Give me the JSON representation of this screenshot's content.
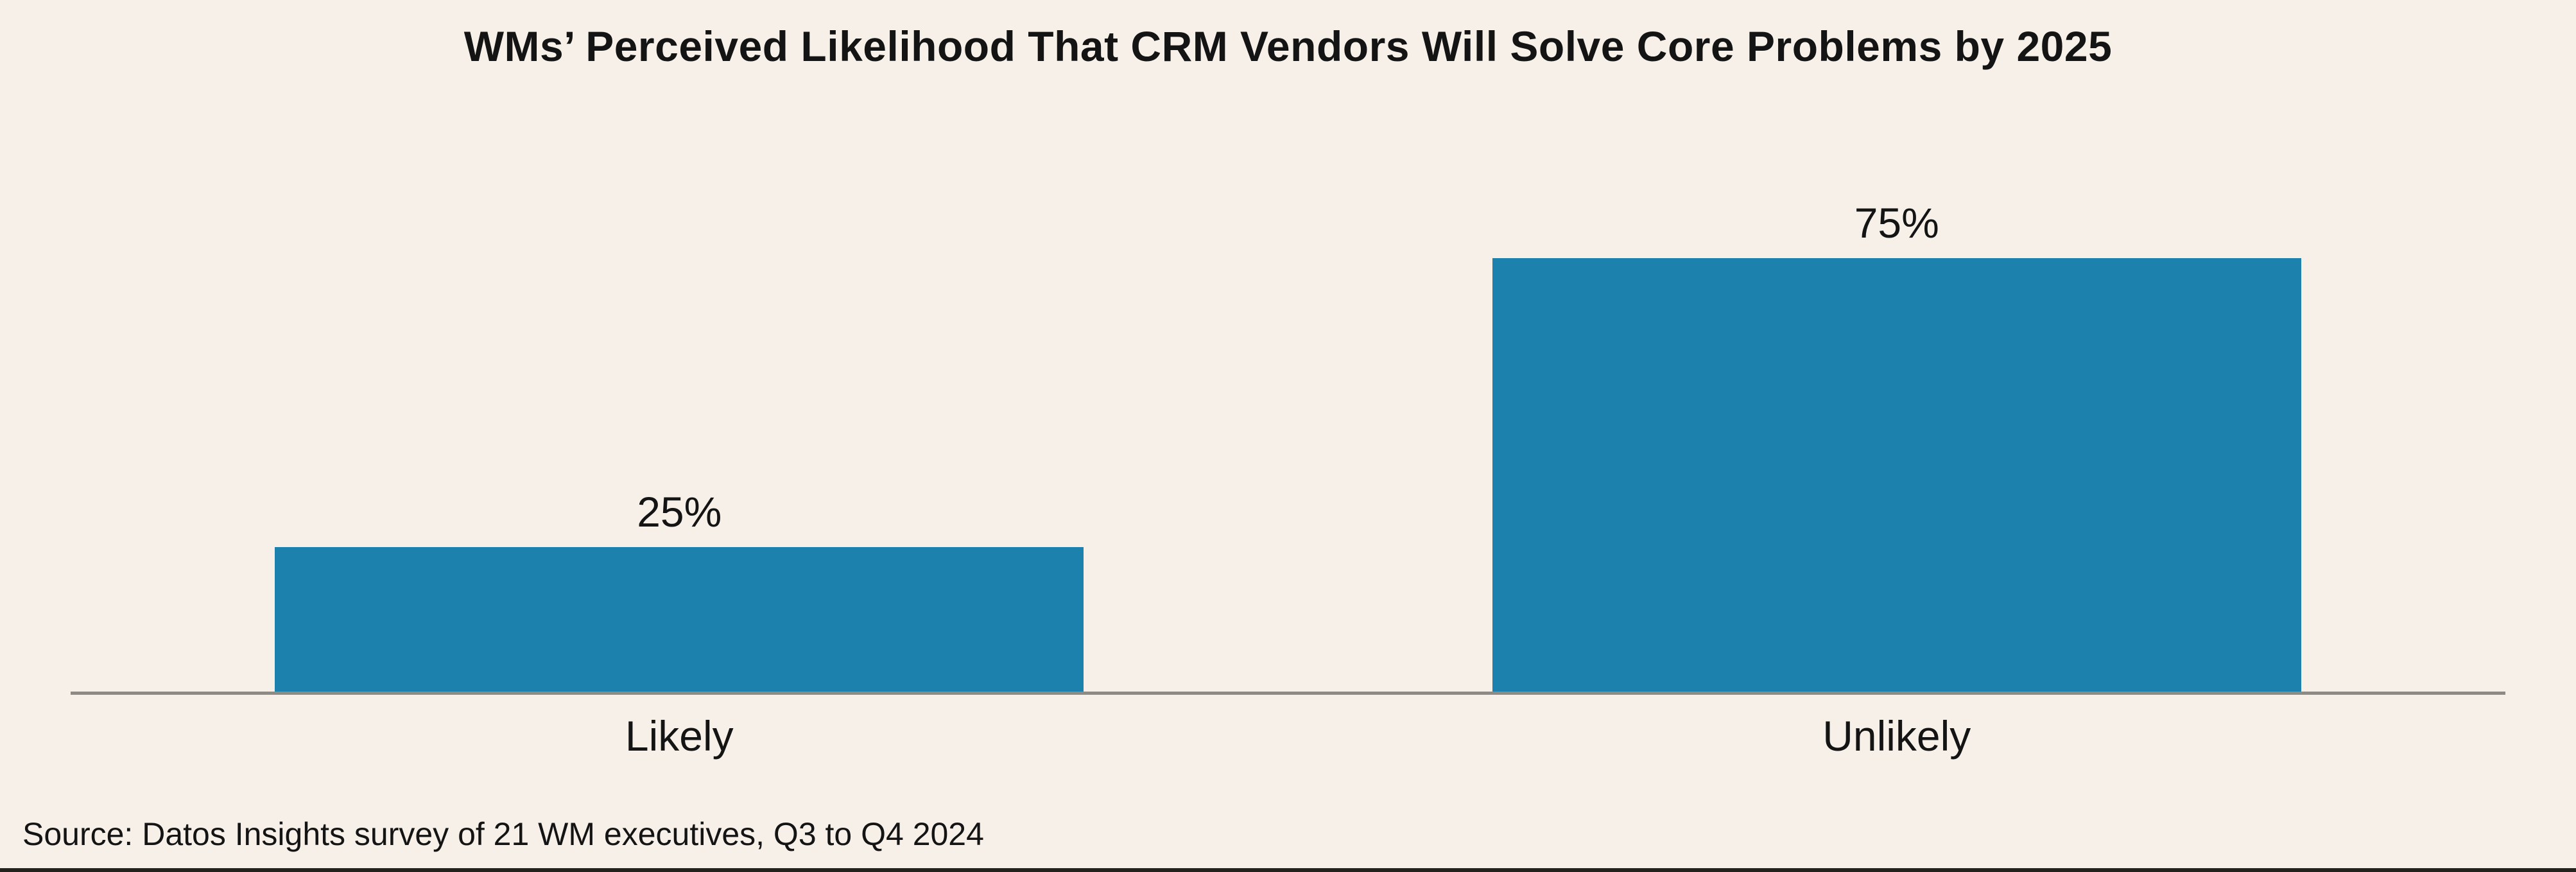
{
  "page": {
    "background_color": "#f7f0e9",
    "text_color": "#141414",
    "bottom_rule_color": "#24221d"
  },
  "chart_data": {
    "type": "bar",
    "title": "WMs’ Perceived Likelihood That CRM Vendors Will Solve Core Problems by 2025",
    "categories": [
      "Likely",
      "Unlikely"
    ],
    "values": [
      25,
      75
    ],
    "value_labels": [
      "25%",
      "75%"
    ],
    "xlabel": "",
    "ylabel": "",
    "ylim": [
      0,
      100
    ],
    "grid": false,
    "legend": false,
    "bar_color": "#1c81ad",
    "axis_line_color": "#8d8b86",
    "source": "Source: Datos Insights survey of 21 WM executives, Q3 to Q4 2024"
  }
}
